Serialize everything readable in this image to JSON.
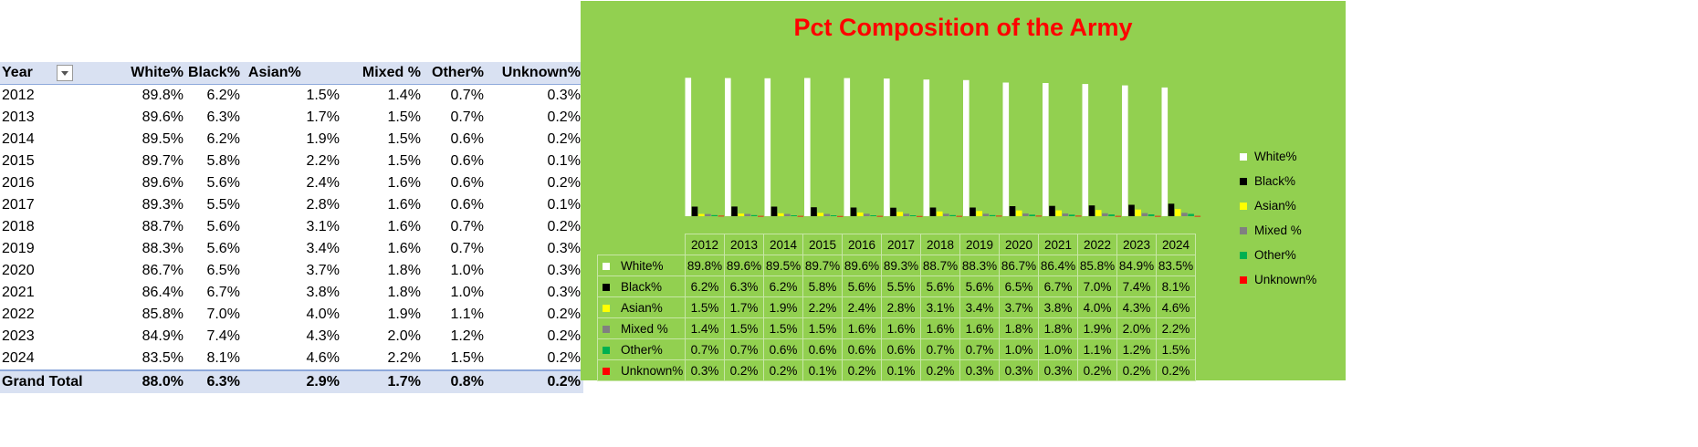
{
  "pivot": {
    "columns": [
      "Year",
      "White%",
      "Black%",
      "Asian%",
      "Mixed %",
      "Other%",
      "Unknown%"
    ],
    "rows": [
      [
        "2012",
        "89.8%",
        "6.2%",
        "1.5%",
        "1.4%",
        "0.7%",
        "0.3%"
      ],
      [
        "2013",
        "89.6%",
        "6.3%",
        "1.7%",
        "1.5%",
        "0.7%",
        "0.2%"
      ],
      [
        "2014",
        "89.5%",
        "6.2%",
        "1.9%",
        "1.5%",
        "0.6%",
        "0.2%"
      ],
      [
        "2015",
        "89.7%",
        "5.8%",
        "2.2%",
        "1.5%",
        "0.6%",
        "0.1%"
      ],
      [
        "2016",
        "89.6%",
        "5.6%",
        "2.4%",
        "1.6%",
        "0.6%",
        "0.2%"
      ],
      [
        "2017",
        "89.3%",
        "5.5%",
        "2.8%",
        "1.6%",
        "0.6%",
        "0.1%"
      ],
      [
        "2018",
        "88.7%",
        "5.6%",
        "3.1%",
        "1.6%",
        "0.7%",
        "0.2%"
      ],
      [
        "2019",
        "88.3%",
        "5.6%",
        "3.4%",
        "1.6%",
        "0.7%",
        "0.3%"
      ],
      [
        "2020",
        "86.7%",
        "6.5%",
        "3.7%",
        "1.8%",
        "1.0%",
        "0.3%"
      ],
      [
        "2021",
        "86.4%",
        "6.7%",
        "3.8%",
        "1.8%",
        "1.0%",
        "0.3%"
      ],
      [
        "2022",
        "85.8%",
        "7.0%",
        "4.0%",
        "1.9%",
        "1.1%",
        "0.2%"
      ],
      [
        "2023",
        "84.9%",
        "7.4%",
        "4.3%",
        "2.0%",
        "1.2%",
        "0.2%"
      ],
      [
        "2024",
        "83.5%",
        "8.1%",
        "4.6%",
        "2.2%",
        "1.5%",
        "0.2%"
      ]
    ],
    "grand_total": [
      "Grand Total",
      "88.0%",
      "6.3%",
      "2.9%",
      "1.7%",
      "0.8%",
      "0.2%"
    ],
    "filter_icon": "dropdown-filter-icon"
  },
  "chart_data": {
    "type": "bar",
    "title": "Pct Composition of the Army",
    "categories": [
      "2012",
      "2013",
      "2014",
      "2015",
      "2016",
      "2017",
      "2018",
      "2019",
      "2020",
      "2021",
      "2022",
      "2023",
      "2024"
    ],
    "ylim": [
      0,
      100
    ],
    "grid": false,
    "legend_position": "right",
    "data_table_shown": true,
    "background_color": "#92d050",
    "title_color": "#ff0000",
    "series": [
      {
        "name": "White%",
        "color": "#ffffff",
        "values": [
          89.8,
          89.6,
          89.5,
          89.7,
          89.6,
          89.3,
          88.7,
          88.3,
          86.7,
          86.4,
          85.8,
          84.9,
          83.5
        ]
      },
      {
        "name": "Black%",
        "color": "#000000",
        "values": [
          6.2,
          6.3,
          6.2,
          5.8,
          5.6,
          5.5,
          5.6,
          5.6,
          6.5,
          6.7,
          7.0,
          7.4,
          8.1
        ]
      },
      {
        "name": "Asian%",
        "color": "#ffff00",
        "values": [
          1.5,
          1.7,
          1.9,
          2.2,
          2.4,
          2.8,
          3.1,
          3.4,
          3.7,
          3.8,
          4.0,
          4.3,
          4.6
        ]
      },
      {
        "name": "Mixed %",
        "color": "#808080",
        "values": [
          1.4,
          1.5,
          1.5,
          1.5,
          1.6,
          1.6,
          1.6,
          1.6,
          1.8,
          1.8,
          1.9,
          2.0,
          2.2
        ]
      },
      {
        "name": "Other%",
        "color": "#00b050",
        "values": [
          0.7,
          0.7,
          0.6,
          0.6,
          0.6,
          0.6,
          0.7,
          0.7,
          1.0,
          1.0,
          1.1,
          1.2,
          1.5
        ]
      },
      {
        "name": "Unknown%",
        "color": "#ff0000",
        "values": [
          0.3,
          0.2,
          0.2,
          0.1,
          0.2,
          0.1,
          0.2,
          0.3,
          0.3,
          0.3,
          0.2,
          0.2,
          0.2
        ]
      }
    ]
  }
}
